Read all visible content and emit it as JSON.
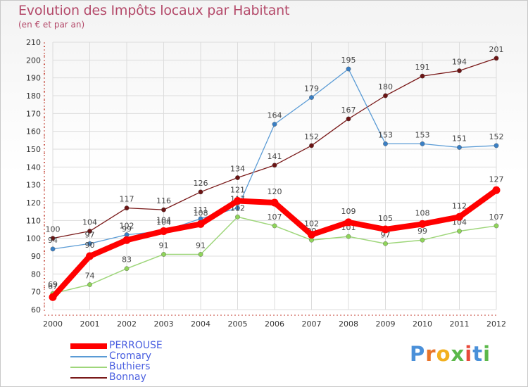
{
  "header": {
    "title": "Evolution des Impôts locaux par Habitant",
    "subtitle": "(en € et par an)"
  },
  "logo": {
    "text": "Proxiti",
    "letters": [
      "P",
      "r",
      "o",
      "x",
      "i",
      "t",
      "i"
    ],
    "colors": [
      "#4a90d9",
      "#e8742a",
      "#f2b01e",
      "#5bb84a",
      "#e84a3a",
      "#4a90d9",
      "#5bb84a"
    ]
  },
  "colors": {
    "title": "#b44a6a",
    "axis": "#c0392b",
    "grid": "#dcdcdc",
    "legend_text": "#4a5fe0"
  },
  "chart_data": {
    "type": "line",
    "title": "Evolution des Impôts locaux par Habitant",
    "subtitle": "(en € et par an)",
    "xlabel": "",
    "ylabel": "",
    "x": [
      2000,
      2001,
      2002,
      2003,
      2004,
      2005,
      2006,
      2007,
      2008,
      2009,
      2010,
      2011,
      2012
    ],
    "ylim": [
      60,
      210
    ],
    "yticks": [
      60,
      70,
      80,
      90,
      100,
      110,
      120,
      130,
      140,
      150,
      160,
      170,
      180,
      190,
      200,
      210
    ],
    "grid": true,
    "legend_position": "bottom-left",
    "series": [
      {
        "name": "Bonnay",
        "color": "#7a1a1a",
        "marker": "#6b1414",
        "width": 1.3,
        "values": [
          100,
          104,
          117,
          116,
          126,
          134,
          141,
          152,
          167,
          180,
          191,
          194,
          201
        ]
      },
      {
        "name": "Cromary",
        "color": "#5a9bd5",
        "marker": "#3a7fc4",
        "width": 1.3,
        "values": [
          94,
          97,
          102,
          104,
          111,
          117,
          164,
          179,
          195,
          153,
          153,
          151,
          152
        ]
      },
      {
        "name": "Buthiers",
        "color": "#9ed67a",
        "marker": "#8fd45a",
        "width": 1.5,
        "values": [
          69,
          74,
          83,
          91,
          91,
          112,
          107,
          99,
          101,
          97,
          99,
          104,
          107
        ]
      },
      {
        "name": "PERROUSE",
        "color": "#ff0000",
        "marker": "#ff0000",
        "width": 8,
        "values": [
          67,
          90,
          99,
          104,
          108,
          121,
          120,
          102,
          109,
          105,
          108,
          112,
          127
        ]
      }
    ],
    "legend_order": [
      "PERROUSE",
      "Cromary",
      "Buthiers",
      "Bonnay"
    ]
  }
}
